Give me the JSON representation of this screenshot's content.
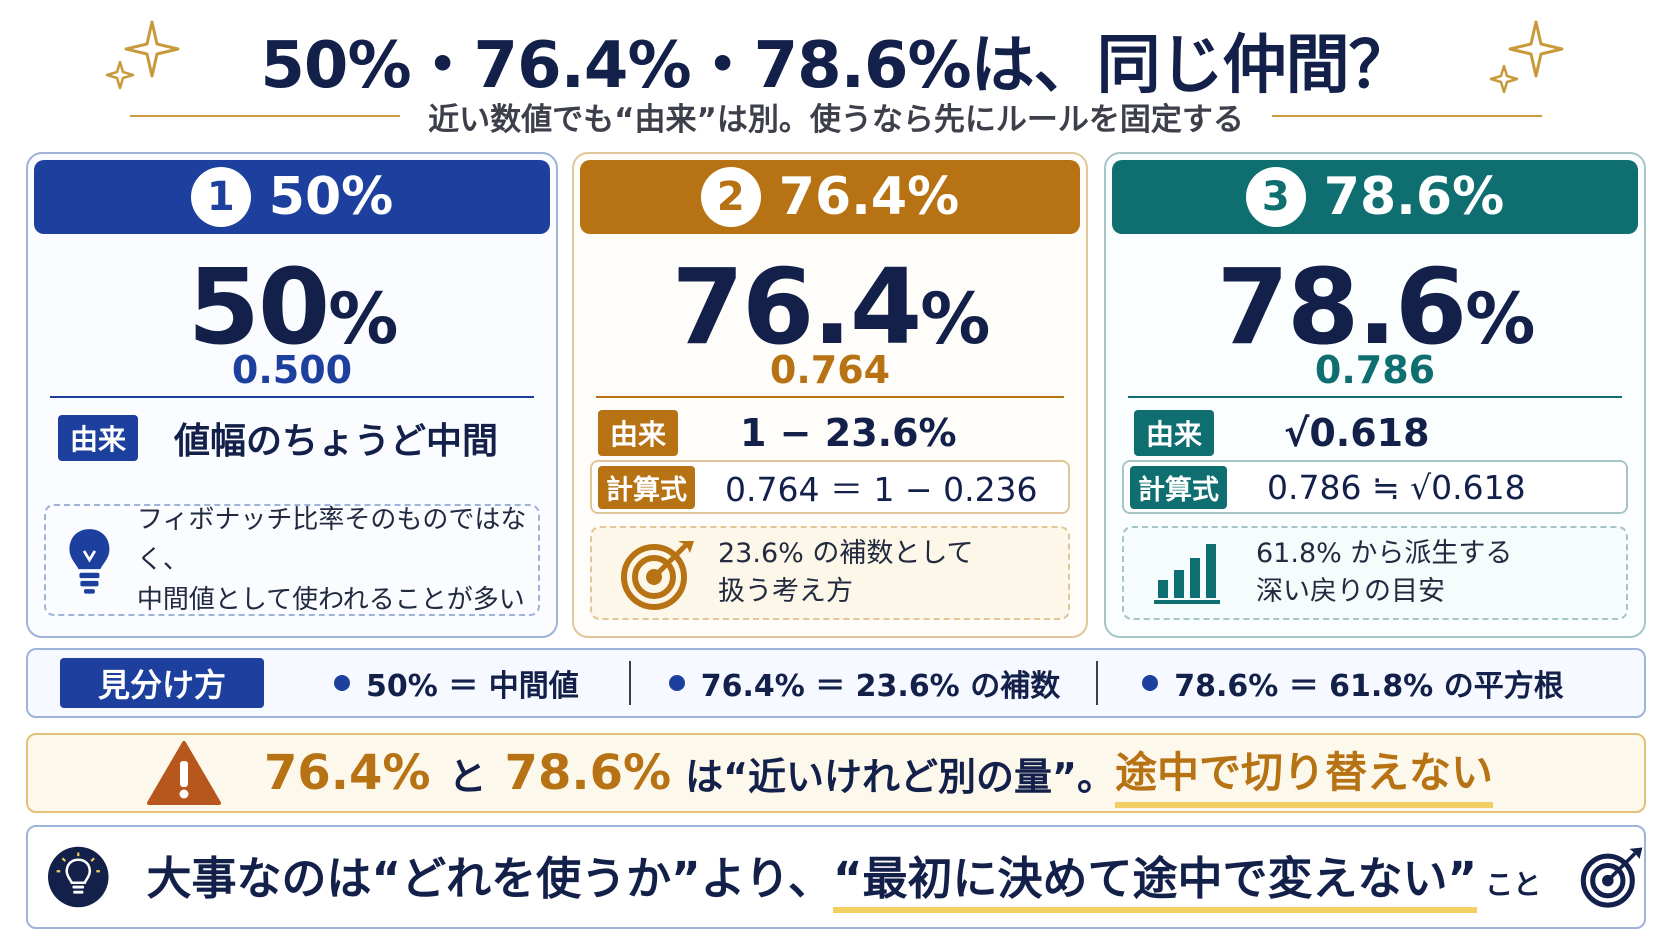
{
  "header": {
    "title": "50%・76.4%・78.6%は、同じ仲間？",
    "subtitle": "近い数値でも“由来”は別。使うなら先にルールを固定する"
  },
  "colors": {
    "blue": "#1d3f9e",
    "gold": "#b77214",
    "teal": "#0f6e70",
    "navy": "#13204a"
  },
  "cards": [
    {
      "number": "1",
      "header_label": "50%",
      "big_value": "50",
      "big_unit": "%",
      "decimal": "0.500",
      "origin_tag": "由来",
      "origin_value": "値幅のちょうど中間",
      "note_icon": "lightbulb-icon",
      "note_line1": "フィボナッチ比率そのものではなく、",
      "note_line2": "中間値として使われることが多い"
    },
    {
      "number": "2",
      "header_label": "76.4%",
      "big_value": "76.4",
      "big_unit": "%",
      "decimal": "0.764",
      "origin_tag": "由来",
      "origin_value": "1 − 23.6%",
      "formula_tag": "計算式",
      "formula_value": "0.764 ＝ 1 − 0.236",
      "note_icon": "target-icon",
      "note_line1": "23.6% の補数として",
      "note_line2": "扱う考え方"
    },
    {
      "number": "3",
      "header_label": "78.6%",
      "big_value": "78.6",
      "big_unit": "%",
      "decimal": "0.786",
      "origin_tag": "由来",
      "origin_value": "√0.618",
      "formula_tag": "計算式",
      "formula_value": "0.786 ≒ √0.618",
      "note_icon": "bar-chart-icon",
      "note_line1": "61.8% から派生する",
      "note_line2": "深い戻りの目安"
    }
  ],
  "summary": {
    "tag": "見分け方",
    "items": [
      "50% ＝ 中間値",
      "76.4% ＝ 23.6% の補数",
      "78.6% ＝ 61.8% の平方根"
    ]
  },
  "warning": {
    "icon": "warning-icon",
    "val1": "76.4%",
    "conj": "と",
    "val2": "78.6%",
    "text": "は“近いけれど別の量”。",
    "highlight": "途中で切り替えない"
  },
  "conclusion": {
    "icon_left": "lightbulb-icon",
    "icon_right": "target-icon",
    "prefix": "大事なのは“どれを使うか”より、",
    "highlight": "“最初に決めて途中で変えない”",
    "suffix": "こと"
  }
}
